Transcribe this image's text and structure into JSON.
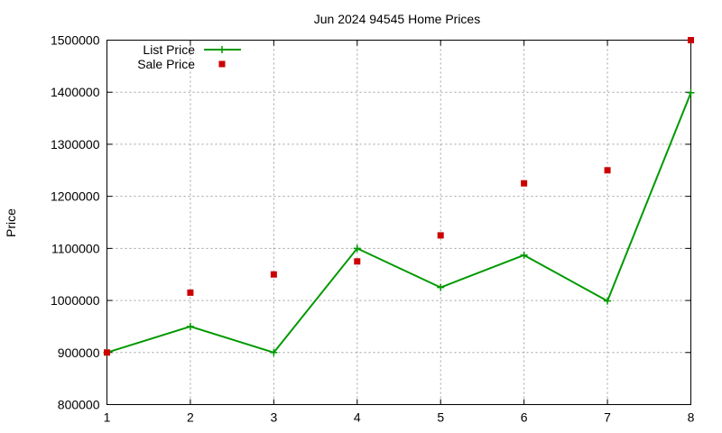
{
  "chart_data": {
    "type": "line",
    "title": "Jun 2024 94545 Home Prices",
    "xlabel": "",
    "ylabel": "Price",
    "x": [
      1,
      2,
      3,
      4,
      5,
      6,
      7,
      8
    ],
    "xlim": [
      1,
      8
    ],
    "ylim": [
      800000,
      1500000
    ],
    "yticks": [
      800000,
      900000,
      1000000,
      1100000,
      1200000,
      1300000,
      1400000,
      1500000
    ],
    "grid": true,
    "legend_position": "top-left",
    "series": [
      {
        "name": "List Price",
        "style": "line-with-plus-markers",
        "color": "#009900",
        "values": [
          900000,
          950000,
          900000,
          1100000,
          1025000,
          1087000,
          999000,
          1399000
        ]
      },
      {
        "name": "Sale Price",
        "style": "square-markers",
        "color": "#cc0000",
        "values": [
          900000,
          1015000,
          1050000,
          1075000,
          1125000,
          1225000,
          1250000,
          1500000
        ]
      }
    ]
  }
}
